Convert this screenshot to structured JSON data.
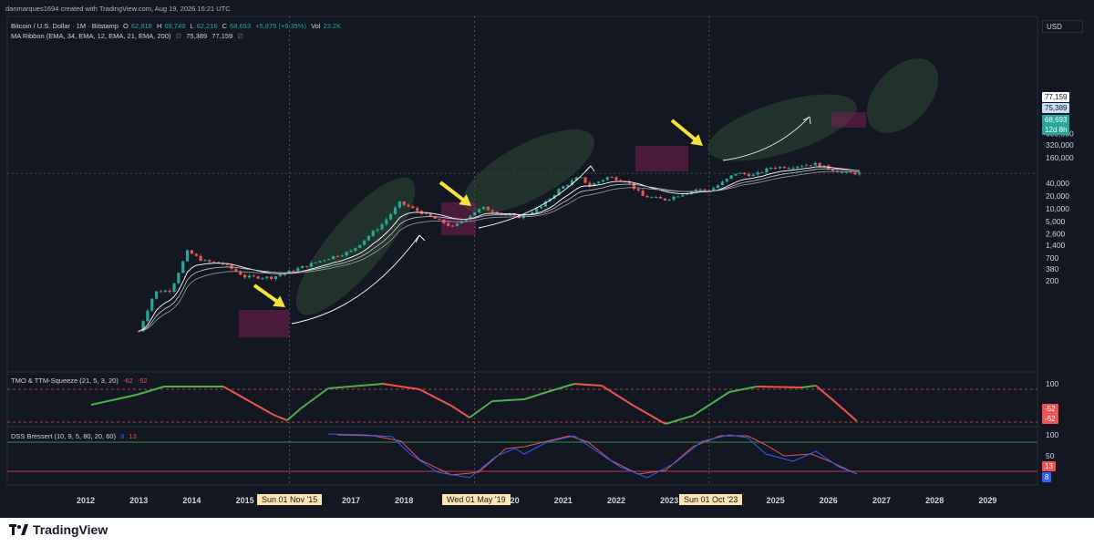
{
  "header": {
    "created_line": "danmarques1694 created with TradingView.com, Aug 19, 2026 16:21 UTC",
    "symbol": "Bitcoin / U.S. Dollar · 1M · Bitstamp",
    "open_label": "O",
    "open": "62,818",
    "high_label": "H",
    "high": "69,749",
    "low_label": "L",
    "low": "62,216",
    "close_label": "C",
    "close": "68,693",
    "change": "+5,875 (+9.35%)",
    "vol_label": "Vol",
    "vol": "23.2K",
    "ma_ribbon": "MA Ribbon (EMA, 34, EMA, 12, EMA, 21, EMA, 200)",
    "ma_value1": "75,389",
    "ma_value2": "77,159",
    "ma_null": "∅"
  },
  "currency": "USD",
  "date_markers": [
    {
      "label": "Sun 01 Nov '15"
    },
    {
      "label": "Wed 01 May '19"
    },
    {
      "label": "Sun 01 Oct '23"
    }
  ],
  "price_badges": {
    "ema_upper": "77,159",
    "ema_lower": "75,389",
    "last_price": "68,693",
    "countdown": "12d 8h"
  },
  "tmo": {
    "title": "TMO & TTM-Squeeze (21, 5, 3, 20)",
    "v1": "-62",
    "v2": "-52",
    "level": "100",
    "badge1": "-52",
    "badge2": "-62"
  },
  "dss": {
    "title": "DSS Bressert (10, 9, 5, 80, 20, 60)",
    "v1": "8",
    "v2": "13",
    "ticks": [
      "100",
      "50"
    ],
    "badge1": "13",
    "badge2": "8"
  },
  "logo_text": "TradingView",
  "chart_data": {
    "type": "candlestick",
    "symbol": "Bitcoin / U.S. Dollar",
    "interval": "1M",
    "y_scale": "log",
    "x_ticks": [
      "2012",
      "2013",
      "2014",
      "2015",
      "2016",
      "2017",
      "2018",
      "2019",
      "2020",
      "2021",
      "2022",
      "2023",
      "2024",
      "2025",
      "2026",
      "2027",
      "2028",
      "2029"
    ],
    "y_ticks": [
      "600,000",
      "320,000",
      "160,000",
      "40,000",
      "20,000",
      "10,000",
      "5,000",
      "2,600",
      "1,400",
      "700",
      "380",
      "200"
    ],
    "price_path": [
      {
        "x": 2013.0,
        "y": 13
      },
      {
        "x": 2013.3,
        "y": 110
      },
      {
        "x": 2013.6,
        "y": 120
      },
      {
        "x": 2013.92,
        "y": 1000
      },
      {
        "x": 2014.2,
        "y": 600
      },
      {
        "x": 2014.6,
        "y": 500
      },
      {
        "x": 2015.0,
        "y": 250
      },
      {
        "x": 2015.5,
        "y": 240
      },
      {
        "x": 2015.84,
        "y": 330
      },
      {
        "x": 2016.5,
        "y": 650
      },
      {
        "x": 2017.0,
        "y": 1000
      },
      {
        "x": 2017.6,
        "y": 4500
      },
      {
        "x": 2017.92,
        "y": 14000
      },
      {
        "x": 2018.5,
        "y": 6500
      },
      {
        "x": 2018.92,
        "y": 3700
      },
      {
        "x": 2019.33,
        "y": 8500
      },
      {
        "x": 2019.5,
        "y": 10500
      },
      {
        "x": 2019.9,
        "y": 7200
      },
      {
        "x": 2020.2,
        "y": 6400
      },
      {
        "x": 2020.6,
        "y": 11500
      },
      {
        "x": 2020.92,
        "y": 29000
      },
      {
        "x": 2021.3,
        "y": 57000
      },
      {
        "x": 2021.5,
        "y": 35000
      },
      {
        "x": 2021.85,
        "y": 57000
      },
      {
        "x": 2022.2,
        "y": 45000
      },
      {
        "x": 2022.5,
        "y": 20000
      },
      {
        "x": 2022.92,
        "y": 16500
      },
      {
        "x": 2023.5,
        "y": 29000
      },
      {
        "x": 2023.75,
        "y": 27000
      },
      {
        "x": 2024.0,
        "y": 42000
      },
      {
        "x": 2024.25,
        "y": 70000
      },
      {
        "x": 2024.6,
        "y": 62000
      },
      {
        "x": 2024.92,
        "y": 95000
      },
      {
        "x": 2025.3,
        "y": 100000
      },
      {
        "x": 2025.75,
        "y": 115000
      },
      {
        "x": 2026.0,
        "y": 90000
      },
      {
        "x": 2026.3,
        "y": 70000
      },
      {
        "x": 2026.6,
        "y": 68693
      }
    ]
  }
}
